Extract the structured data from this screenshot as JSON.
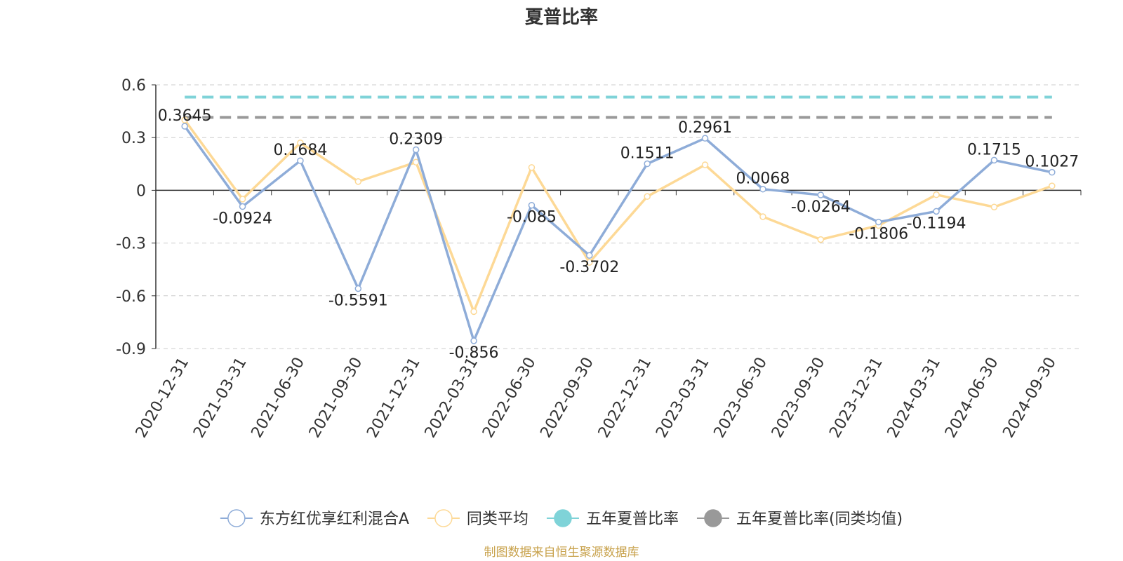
{
  "chart_data": {
    "type": "line",
    "title": "夏普比率",
    "categories": [
      "2020-12-31",
      "2021-03-31",
      "2021-06-30",
      "2021-09-30",
      "2021-12-31",
      "2022-03-31",
      "2022-06-30",
      "2022-09-30",
      "2022-12-31",
      "2023-03-31",
      "2023-06-30",
      "2023-09-30",
      "2023-12-31",
      "2024-03-31",
      "2024-06-30",
      "2024-09-30"
    ],
    "ylim": [
      -0.9,
      0.6
    ],
    "yticks": [
      0.6,
      0.3,
      0,
      -0.3,
      -0.6,
      -0.9
    ],
    "ytick_labels": [
      "0.6",
      "0.3",
      "0",
      "-0.3",
      "-0.6",
      "-0.9"
    ],
    "grid": true,
    "legend_position": "bottom-center",
    "series": [
      {
        "name": "东方红优享红利混合A",
        "color": "#8eacd8",
        "marker": "hollow-circle",
        "values": [
          0.3645,
          -0.0924,
          0.1684,
          -0.5591,
          0.2309,
          -0.856,
          -0.085,
          -0.3702,
          0.1511,
          0.2961,
          0.0068,
          -0.0264,
          -0.1806,
          -0.1194,
          0.1715,
          0.1027
        ],
        "labels": [
          "0.3645",
          "-0.0924",
          "0.1684",
          "-0.5591",
          "0.2309",
          "-0.856",
          "-0.085",
          "-0.3702",
          "0.1511",
          "0.2961",
          "0.0068",
          "-0.0264",
          "-0.1806",
          "-0.1194",
          "0.1715",
          "0.1027"
        ]
      },
      {
        "name": "同类平均",
        "color": "#fdd996",
        "marker": "hollow-circle",
        "values": [
          0.4,
          -0.05,
          0.27,
          0.05,
          0.16,
          -0.69,
          0.13,
          -0.41,
          -0.035,
          0.145,
          -0.15,
          -0.28,
          -0.2,
          -0.025,
          -0.095,
          0.025
        ]
      },
      {
        "name": "五年夏普比率",
        "color": "#7fd3d8",
        "marker": "filled-circle",
        "style": "dashed",
        "constant": 0.53
      },
      {
        "name": "五年夏普比率(同类均值)",
        "color": "#999999",
        "marker": "filled-circle",
        "style": "dashed",
        "constant": 0.415
      }
    ]
  },
  "source_note": "制图数据来自恒生聚源数据库"
}
